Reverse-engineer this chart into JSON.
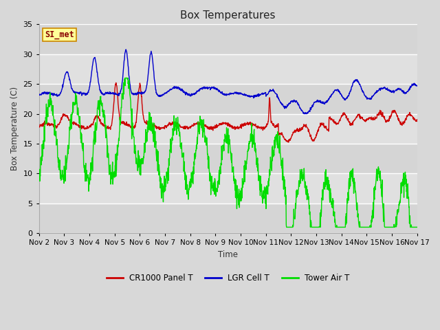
{
  "title": "Box Temperatures",
  "ylabel": "Box Temperature (C)",
  "xlabel": "Time",
  "xlim_labels": [
    "Nov 2",
    "Nov 3",
    "Nov 4",
    "Nov 5",
    "Nov 6",
    "Nov 7",
    "Nov 8",
    "Nov 9",
    "Nov 10",
    "Nov 11",
    "Nov 12",
    "Nov 13",
    "Nov 14",
    "Nov 15",
    "Nov 16",
    "Nov 17"
  ],
  "ylim": [
    0,
    35
  ],
  "yticks": [
    0,
    5,
    10,
    15,
    20,
    25,
    30,
    35
  ],
  "fig_bg_color": "#d8d8d8",
  "plot_bg_color": "#e0e0e0",
  "grid_color": "#ffffff",
  "line_colors": [
    "#cc0000",
    "#0000cc",
    "#00dd00"
  ],
  "legend_items": [
    "CR1000 Panel T",
    "LGR Cell T",
    "Tower Air T"
  ],
  "watermark_text": "SI_met",
  "watermark_bg": "#ffff99",
  "watermark_border": "#cc8800",
  "watermark_text_color": "#880000"
}
